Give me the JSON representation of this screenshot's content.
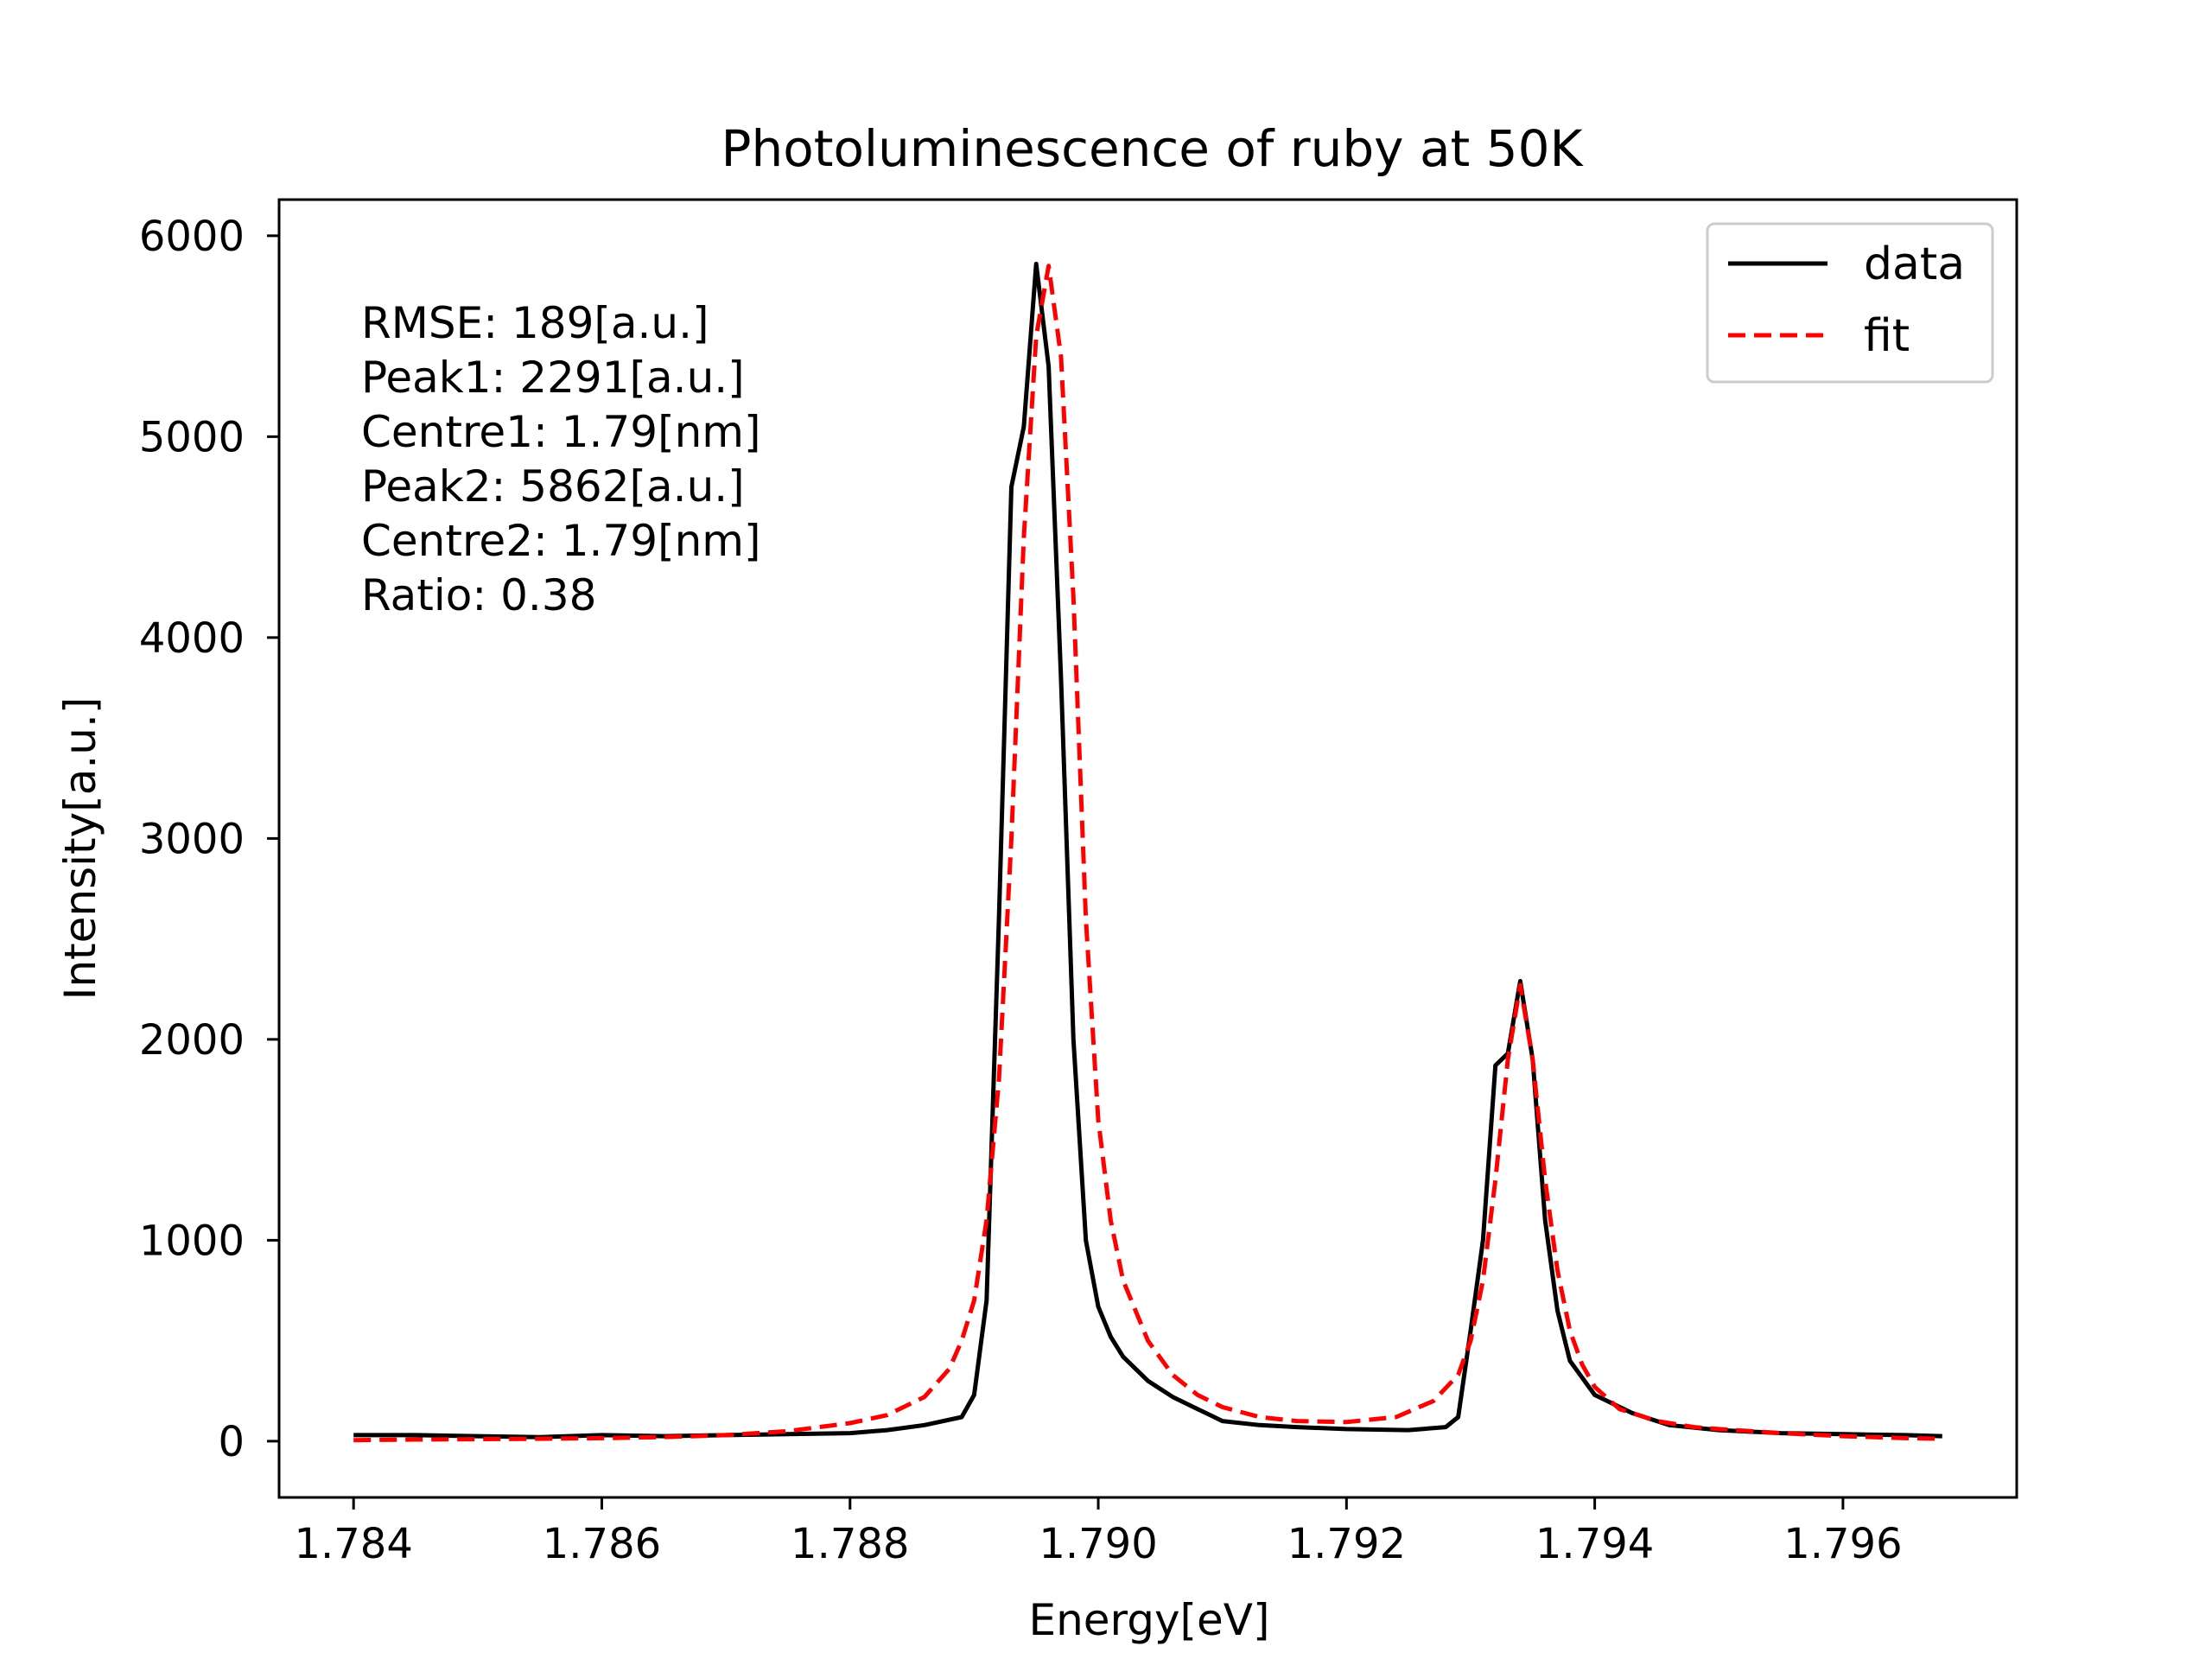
{
  "chart_data": {
    "type": "line",
    "title": "Photoluminescence of ruby at 50K",
    "xlabel": "Energy[eV]",
    "ylabel": "Intensity[a.u.]",
    "xlim": [
      1.7834,
      1.7974
    ],
    "ylim": [
      -280,
      6180
    ],
    "xticks": [
      1.784,
      1.786,
      1.788,
      1.79,
      1.792,
      1.794,
      1.796
    ],
    "xtick_labels": [
      "1.784",
      "1.786",
      "1.788",
      "1.790",
      "1.792",
      "1.794",
      "1.796"
    ],
    "yticks": [
      0,
      1000,
      2000,
      3000,
      4000,
      5000,
      6000
    ],
    "ytick_labels": [
      "0",
      "1000",
      "2000",
      "3000",
      "4000",
      "5000",
      "6000"
    ],
    "grid": false,
    "legend_position": "top-right",
    "annotations": [
      "RMSE: 189[a.u.]",
      "Peak1: 2291[a.u.]",
      "Centre1: 1.79[nm]",
      "Peak2: 5862[a.u.]",
      "Centre2: 1.79[nm]",
      "Ratio: 0.38"
    ],
    "series": [
      {
        "name": "data",
        "color": "#000000",
        "style": "solid",
        "x": [
          1.784,
          1.7845,
          1.785,
          1.7855,
          1.786,
          1.7865,
          1.787,
          1.7875,
          1.788,
          1.7883,
          1.7886,
          1.7889,
          1.789,
          1.7891,
          1.7892,
          1.7893,
          1.7894,
          1.7895,
          1.7896,
          1.7897,
          1.7898,
          1.7899,
          1.79,
          1.7901,
          1.7902,
          1.7904,
          1.7906,
          1.7908,
          1.791,
          1.7913,
          1.7916,
          1.792,
          1.7925,
          1.7928,
          1.7929,
          1.793,
          1.7931,
          1.7932,
          1.7933,
          1.7934,
          1.7935,
          1.7936,
          1.7937,
          1.7938,
          1.794,
          1.7943,
          1.7946,
          1.795,
          1.7955,
          1.796,
          1.7965,
          1.7968
        ],
        "y": [
          30,
          30,
          25,
          20,
          30,
          25,
          30,
          35,
          40,
          55,
          80,
          120,
          230,
          700,
          2600,
          4750,
          5050,
          5860,
          5350,
          3800,
          2000,
          1000,
          670,
          520,
          420,
          300,
          220,
          160,
          100,
          80,
          70,
          60,
          55,
          70,
          120,
          550,
          1000,
          1870,
          1930,
          2290,
          1900,
          1100,
          650,
          400,
          230,
          140,
          80,
          55,
          40,
          35,
          30,
          25
        ]
      },
      {
        "name": "fit",
        "color": "#ff0000",
        "style": "dashed",
        "x": [
          1.784,
          1.7845,
          1.785,
          1.7855,
          1.786,
          1.7865,
          1.787,
          1.7875,
          1.788,
          1.7883,
          1.7886,
          1.7888,
          1.7889,
          1.789,
          1.7891,
          1.7892,
          1.7893,
          1.7894,
          1.7895,
          1.7896,
          1.7897,
          1.7898,
          1.7899,
          1.79,
          1.7901,
          1.7902,
          1.7904,
          1.7906,
          1.7908,
          1.791,
          1.7913,
          1.7916,
          1.792,
          1.7924,
          1.7927,
          1.7929,
          1.793,
          1.7931,
          1.7932,
          1.7933,
          1.7934,
          1.7935,
          1.7936,
          1.7937,
          1.7938,
          1.7939,
          1.794,
          1.7942,
          1.7945,
          1.7948,
          1.795,
          1.7955,
          1.796,
          1.7965,
          1.7968
        ],
        "y": [
          5,
          8,
          10,
          12,
          15,
          20,
          30,
          50,
          90,
          130,
          220,
          360,
          500,
          700,
          1100,
          1800,
          3000,
          4500,
          5500,
          5850,
          5400,
          4200,
          2600,
          1600,
          1100,
          800,
          500,
          330,
          230,
          170,
          120,
          100,
          95,
          120,
          200,
          330,
          500,
          800,
          1300,
          1900,
          2270,
          1900,
          1300,
          850,
          550,
          380,
          270,
          160,
          100,
          70,
          60,
          40,
          25,
          15,
          12
        ]
      }
    ]
  }
}
